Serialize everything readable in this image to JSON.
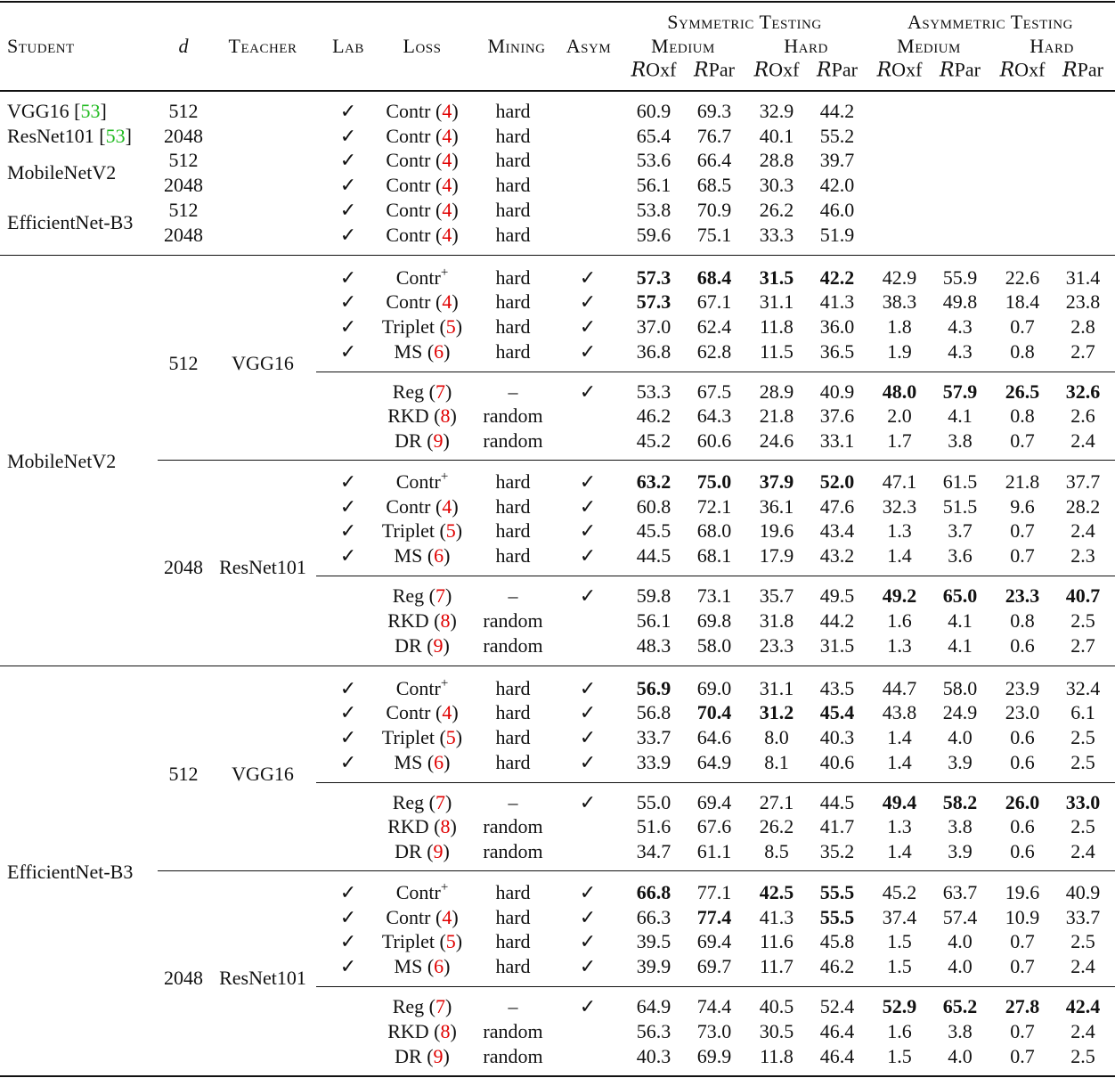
{
  "header": {
    "student": "Student",
    "d": "d",
    "teacher": "Teacher",
    "lab": "Lab",
    "loss": "Loss",
    "mining": "Mining",
    "asym": "Asym",
    "symmetric": "Symmetric Testing",
    "asymmetric": "Asymmetric Testing",
    "medium": "Medium",
    "hard": "Hard",
    "metric_prefix": "R",
    "roxf": "Oxf",
    "rpar": "Par"
  },
  "check": "✓",
  "baseline": [
    {
      "student": "VGG16",
      "cite": "53",
      "rows": [
        {
          "d": "512",
          "lab": true,
          "loss": "Contr",
          "ref": "4",
          "mining": "hard",
          "asym": false,
          "values": [
            "60.9",
            "69.3",
            "32.9",
            "44.2"
          ],
          "bold": []
        }
      ]
    },
    {
      "student": "ResNet101",
      "cite": "53",
      "rows": [
        {
          "d": "2048",
          "lab": true,
          "loss": "Contr",
          "ref": "4",
          "mining": "hard",
          "asym": false,
          "values": [
            "65.4",
            "76.7",
            "40.1",
            "55.2"
          ],
          "bold": []
        }
      ]
    },
    {
      "student": "MobileNetV2",
      "rows": [
        {
          "d": "512",
          "lab": true,
          "loss": "Contr",
          "ref": "4",
          "mining": "hard",
          "asym": false,
          "values": [
            "53.6",
            "66.4",
            "28.8",
            "39.7"
          ],
          "bold": []
        },
        {
          "d": "2048",
          "lab": true,
          "loss": "Contr",
          "ref": "4",
          "mining": "hard",
          "asym": false,
          "values": [
            "56.1",
            "68.5",
            "30.3",
            "42.0"
          ],
          "bold": []
        }
      ]
    },
    {
      "student": "EfficientNet-B3",
      "rows": [
        {
          "d": "512",
          "lab": true,
          "loss": "Contr",
          "ref": "4",
          "mining": "hard",
          "asym": false,
          "values": [
            "53.8",
            "70.9",
            "26.2",
            "46.0"
          ],
          "bold": []
        },
        {
          "d": "2048",
          "lab": true,
          "loss": "Contr",
          "ref": "4",
          "mining": "hard",
          "asym": false,
          "values": [
            "59.6",
            "75.1",
            "33.3",
            "51.9"
          ],
          "bold": []
        }
      ]
    }
  ],
  "distillation": [
    {
      "student": "MobileNetV2",
      "groups": [
        {
          "d": "512",
          "teacher": "VGG16",
          "subgroups": [
            [
              {
                "lab": true,
                "loss": "Contr",
                "sup": "+",
                "mining": "hard",
                "asym": true,
                "values": [
                  "57.3",
                  "68.4",
                  "31.5",
                  "42.2",
                  "42.9",
                  "55.9",
                  "22.6",
                  "31.4"
                ],
                "bold": [
                  0,
                  1,
                  2,
                  3
                ]
              },
              {
                "lab": true,
                "loss": "Contr",
                "ref": "4",
                "mining": "hard",
                "asym": true,
                "values": [
                  "57.3",
                  "67.1",
                  "31.1",
                  "41.3",
                  "38.3",
                  "49.8",
                  "18.4",
                  "23.8"
                ],
                "bold": [
                  0
                ]
              },
              {
                "lab": true,
                "loss": "Triplet",
                "ref": "5",
                "mining": "hard",
                "asym": true,
                "values": [
                  "37.0",
                  "62.4",
                  "11.8",
                  "36.0",
                  "1.8",
                  "4.3",
                  "0.7",
                  "2.8"
                ],
                "bold": []
              },
              {
                "lab": true,
                "loss": "MS",
                "ref": "6",
                "mining": "hard",
                "asym": true,
                "values": [
                  "36.8",
                  "62.8",
                  "11.5",
                  "36.5",
                  "1.9",
                  "4.3",
                  "0.8",
                  "2.7"
                ],
                "bold": []
              }
            ],
            [
              {
                "lab": false,
                "loss": "Reg",
                "ref": "7",
                "mining": "–",
                "asym": true,
                "values": [
                  "53.3",
                  "67.5",
                  "28.9",
                  "40.9",
                  "48.0",
                  "57.9",
                  "26.5",
                  "32.6"
                ],
                "bold": [
                  4,
                  5,
                  6,
                  7
                ]
              },
              {
                "lab": false,
                "loss": "RKD",
                "ref": "8",
                "mining": "random",
                "asym": false,
                "values": [
                  "46.2",
                  "64.3",
                  "21.8",
                  "37.6",
                  "2.0",
                  "4.1",
                  "0.8",
                  "2.6"
                ],
                "bold": []
              },
              {
                "lab": false,
                "loss": "DR",
                "ref": "9",
                "mining": "random",
                "asym": false,
                "values": [
                  "45.2",
                  "60.6",
                  "24.6",
                  "33.1",
                  "1.7",
                  "3.8",
                  "0.7",
                  "2.4"
                ],
                "bold": []
              }
            ]
          ]
        },
        {
          "d": "2048",
          "teacher": "ResNet101",
          "subgroups": [
            [
              {
                "lab": true,
                "loss": "Contr",
                "sup": "+",
                "mining": "hard",
                "asym": true,
                "values": [
                  "63.2",
                  "75.0",
                  "37.9",
                  "52.0",
                  "47.1",
                  "61.5",
                  "21.8",
                  "37.7"
                ],
                "bold": [
                  0,
                  1,
                  2,
                  3
                ]
              },
              {
                "lab": true,
                "loss": "Contr",
                "ref": "4",
                "mining": "hard",
                "asym": true,
                "values": [
                  "60.8",
                  "72.1",
                  "36.1",
                  "47.6",
                  "32.3",
                  "51.5",
                  "9.6",
                  "28.2"
                ],
                "bold": []
              },
              {
                "lab": true,
                "loss": "Triplet",
                "ref": "5",
                "mining": "hard",
                "asym": true,
                "values": [
                  "45.5",
                  "68.0",
                  "19.6",
                  "43.4",
                  "1.3",
                  "3.7",
                  "0.7",
                  "2.4"
                ],
                "bold": []
              },
              {
                "lab": true,
                "loss": "MS",
                "ref": "6",
                "mining": "hard",
                "asym": true,
                "values": [
                  "44.5",
                  "68.1",
                  "17.9",
                  "43.2",
                  "1.4",
                  "3.6",
                  "0.7",
                  "2.3"
                ],
                "bold": []
              }
            ],
            [
              {
                "lab": false,
                "loss": "Reg",
                "ref": "7",
                "mining": "–",
                "asym": true,
                "values": [
                  "59.8",
                  "73.1",
                  "35.7",
                  "49.5",
                  "49.2",
                  "65.0",
                  "23.3",
                  "40.7"
                ],
                "bold": [
                  4,
                  5,
                  6,
                  7
                ]
              },
              {
                "lab": false,
                "loss": "RKD",
                "ref": "8",
                "mining": "random",
                "asym": false,
                "values": [
                  "56.1",
                  "69.8",
                  "31.8",
                  "44.2",
                  "1.6",
                  "4.1",
                  "0.8",
                  "2.5"
                ],
                "bold": []
              },
              {
                "lab": false,
                "loss": "DR",
                "ref": "9",
                "mining": "random",
                "asym": false,
                "values": [
                  "48.3",
                  "58.0",
                  "23.3",
                  "31.5",
                  "1.3",
                  "4.1",
                  "0.6",
                  "2.7"
                ],
                "bold": []
              }
            ]
          ]
        }
      ]
    },
    {
      "student": "EfficientNet-B3",
      "groups": [
        {
          "d": "512",
          "teacher": "VGG16",
          "subgroups": [
            [
              {
                "lab": true,
                "loss": "Contr",
                "sup": "+",
                "mining": "hard",
                "asym": true,
                "values": [
                  "56.9",
                  "69.0",
                  "31.1",
                  "43.5",
                  "44.7",
                  "58.0",
                  "23.9",
                  "32.4"
                ],
                "bold": [
                  0
                ]
              },
              {
                "lab": true,
                "loss": "Contr",
                "ref": "4",
                "mining": "hard",
                "asym": true,
                "values": [
                  "56.8",
                  "70.4",
                  "31.2",
                  "45.4",
                  "43.8",
                  "24.9",
                  "23.0",
                  "6.1"
                ],
                "bold": [
                  1,
                  2,
                  3
                ]
              },
              {
                "lab": true,
                "loss": "Triplet",
                "ref": "5",
                "mining": "hard",
                "asym": true,
                "values": [
                  "33.7",
                  "64.6",
                  "8.0",
                  "40.3",
                  "1.4",
                  "4.0",
                  "0.6",
                  "2.5"
                ],
                "bold": []
              },
              {
                "lab": true,
                "loss": "MS",
                "ref": "6",
                "mining": "hard",
                "asym": true,
                "values": [
                  "33.9",
                  "64.9",
                  "8.1",
                  "40.6",
                  "1.4",
                  "3.9",
                  "0.6",
                  "2.5"
                ],
                "bold": []
              }
            ],
            [
              {
                "lab": false,
                "loss": "Reg",
                "ref": "7",
                "mining": "–",
                "asym": true,
                "values": [
                  "55.0",
                  "69.4",
                  "27.1",
                  "44.5",
                  "49.4",
                  "58.2",
                  "26.0",
                  "33.0"
                ],
                "bold": [
                  4,
                  5,
                  6,
                  7
                ]
              },
              {
                "lab": false,
                "loss": "RKD",
                "ref": "8",
                "mining": "random",
                "asym": false,
                "values": [
                  "51.6",
                  "67.6",
                  "26.2",
                  "41.7",
                  "1.3",
                  "3.8",
                  "0.6",
                  "2.5"
                ],
                "bold": []
              },
              {
                "lab": false,
                "loss": "DR",
                "ref": "9",
                "mining": "random",
                "asym": false,
                "values": [
                  "34.7",
                  "61.1",
                  "8.5",
                  "35.2",
                  "1.4",
                  "3.9",
                  "0.6",
                  "2.4"
                ],
                "bold": []
              }
            ]
          ]
        },
        {
          "d": "2048",
          "teacher": "ResNet101",
          "subgroups": [
            [
              {
                "lab": true,
                "loss": "Contr",
                "sup": "+",
                "mining": "hard",
                "asym": true,
                "values": [
                  "66.8",
                  "77.1",
                  "42.5",
                  "55.5",
                  "45.2",
                  "63.7",
                  "19.6",
                  "40.9"
                ],
                "bold": [
                  0,
                  2,
                  3
                ]
              },
              {
                "lab": true,
                "loss": "Contr",
                "ref": "4",
                "mining": "hard",
                "asym": true,
                "values": [
                  "66.3",
                  "77.4",
                  "41.3",
                  "55.5",
                  "37.4",
                  "57.4",
                  "10.9",
                  "33.7"
                ],
                "bold": [
                  1,
                  3
                ]
              },
              {
                "lab": true,
                "loss": "Triplet",
                "ref": "5",
                "mining": "hard",
                "asym": true,
                "values": [
                  "39.5",
                  "69.4",
                  "11.6",
                  "45.8",
                  "1.5",
                  "4.0",
                  "0.7",
                  "2.5"
                ],
                "bold": []
              },
              {
                "lab": true,
                "loss": "MS",
                "ref": "6",
                "mining": "hard",
                "asym": true,
                "values": [
                  "39.9",
                  "69.7",
                  "11.7",
                  "46.2",
                  "1.5",
                  "4.0",
                  "0.7",
                  "2.4"
                ],
                "bold": []
              }
            ],
            [
              {
                "lab": false,
                "loss": "Reg",
                "ref": "7",
                "mining": "–",
                "asym": true,
                "values": [
                  "64.9",
                  "74.4",
                  "40.5",
                  "52.4",
                  "52.9",
                  "65.2",
                  "27.8",
                  "42.4"
                ],
                "bold": [
                  4,
                  5,
                  6,
                  7
                ]
              },
              {
                "lab": false,
                "loss": "RKD",
                "ref": "8",
                "mining": "random",
                "asym": false,
                "values": [
                  "56.3",
                  "73.0",
                  "30.5",
                  "46.4",
                  "1.6",
                  "3.8",
                  "0.7",
                  "2.4"
                ],
                "bold": []
              },
              {
                "lab": false,
                "loss": "DR",
                "ref": "9",
                "mining": "random",
                "asym": false,
                "values": [
                  "40.3",
                  "69.9",
                  "11.8",
                  "46.4",
                  "1.5",
                  "4.0",
                  "0.7",
                  "2.5"
                ],
                "bold": []
              }
            ]
          ]
        }
      ]
    }
  ]
}
